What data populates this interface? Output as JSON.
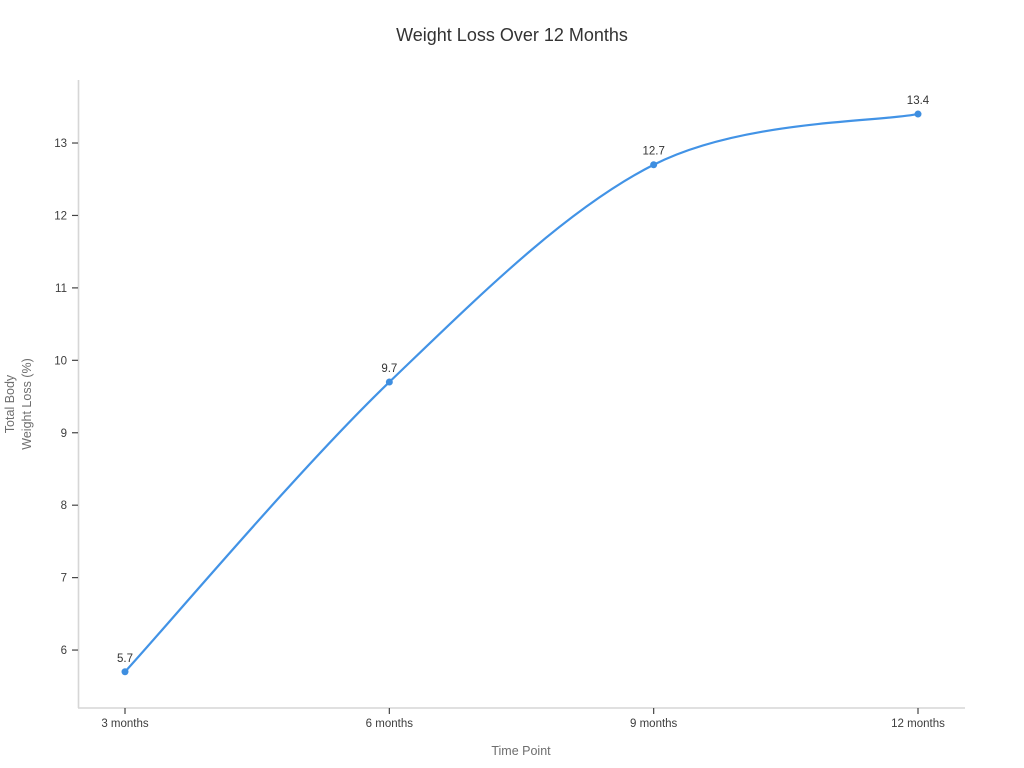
{
  "chart_data": {
    "type": "line",
    "title": "Weight Loss Over 12 Months",
    "xlabel": "Time Point",
    "ylabel": "Total Body Weight Loss (%)",
    "ylabel_lines": [
      "Total Body",
      "Weight Loss (%)"
    ],
    "categories": [
      "3 months",
      "6 months",
      "9 months",
      "12 months"
    ],
    "values": [
      5.7,
      9.7,
      12.7,
      13.4
    ],
    "point_labels": [
      "5.7",
      "9.7",
      "12.7",
      "13.4"
    ],
    "ylim": [
      5.2,
      13.87
    ],
    "yticks": [
      6,
      7,
      8,
      9,
      10,
      11,
      12,
      13
    ],
    "grid": false,
    "legend_visible": false,
    "line_shape": "spline",
    "colors": {
      "line": "#4293E6",
      "marker": "#3E8EE0",
      "title_text": "#333333",
      "tick_text": "#3D3D3D",
      "axis_label_text": "#6E6E6E",
      "axis_line": "#D6D6D6",
      "tick_mark": "#444444",
      "background": "#FFFFFF"
    }
  }
}
